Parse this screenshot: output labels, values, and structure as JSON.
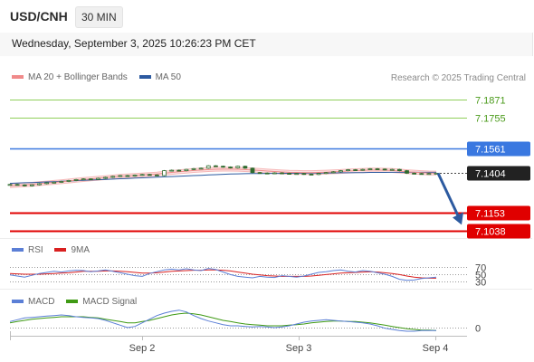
{
  "header": {
    "pair": "USD/CNH",
    "timeframe": "30 MIN",
    "datetime": "Wednesday, September 3, 2025 10:26:23 PM CET"
  },
  "legend": {
    "ma20_label": "MA 20 + Bollinger Bands",
    "ma50_label": "MA 50",
    "credit": "Research © 2025 Trading Central"
  },
  "colors": {
    "ma20": "#f08a8a",
    "ma50": "#2c5aa0",
    "bollinger_fill": "#fbe3e3",
    "resistance": "#8fcf5a",
    "pivot": "#3a78e0",
    "support": "#e00000",
    "candle": "#2e6b2e",
    "arrow": "#2c5aa0",
    "rsi": "#5b7fd6",
    "rsi_ma": "#d92020",
    "macd": "#5b7fd6",
    "macd_signal": "#3f9a14"
  },
  "chart_data": [
    {
      "type": "line",
      "panel": "price",
      "x_labels": [
        "Sep 2",
        "Sep 3",
        "Sep 4"
      ],
      "y_range": [
        7.1,
        7.195
      ],
      "levels": [
        {
          "label": "7.1871",
          "value": 7.1871,
          "kind": "resistance"
        },
        {
          "label": "7.1755",
          "value": 7.1755,
          "kind": "resistance"
        },
        {
          "label": "7.1561",
          "value": 7.1561,
          "kind": "pivot"
        },
        {
          "label": "7.1404",
          "value": 7.1404,
          "kind": "last"
        },
        {
          "label": "7.1153",
          "value": 7.1153,
          "kind": "support"
        },
        {
          "label": "7.1038",
          "value": 7.1038,
          "kind": "support"
        }
      ],
      "close": [
        7.1333,
        7.133,
        7.1324,
        7.1331,
        7.1338,
        7.1344,
        7.1347,
        7.1352,
        7.1358,
        7.1364,
        7.1368,
        7.1365,
        7.1372,
        7.1378,
        7.1384,
        7.1389,
        7.1386,
        7.1392,
        7.1396,
        7.1393,
        7.1389,
        7.142,
        7.1423,
        7.142,
        7.1428,
        7.1433,
        7.1436,
        7.1451,
        7.1448,
        7.1443,
        7.1438,
        7.1448,
        7.1436,
        7.1408,
        7.1405,
        7.1402,
        7.1406,
        7.1403,
        7.14,
        7.1402,
        7.1398,
        7.1396,
        7.1403,
        7.1408,
        7.1413,
        7.142,
        7.1426,
        7.1424,
        7.1428,
        7.1432,
        7.143,
        7.1426,
        7.1428,
        7.142,
        7.1404,
        7.1402,
        7.14,
        7.1402,
        7.1404
      ],
      "ma20": [
        7.1325,
        7.1328,
        7.1331,
        7.1334,
        7.1338,
        7.1342,
        7.1346,
        7.135,
        7.1355,
        7.136,
        7.1364,
        7.1368,
        7.1372,
        7.1376,
        7.138,
        7.1384,
        7.1387,
        7.139,
        7.1393,
        7.1396,
        7.1399,
        7.1404,
        7.1409,
        7.1413,
        7.1417,
        7.1421,
        7.1424,
        7.1427,
        7.1429,
        7.143,
        7.143,
        7.1429,
        7.1427,
        7.1424,
        7.1421,
        7.1418,
        7.1415,
        7.1412,
        7.141,
        7.1409,
        7.1408,
        7.1408,
        7.1409,
        7.1411,
        7.1413,
        7.1415,
        7.1418,
        7.142,
        7.1422,
        7.1424,
        7.1424,
        7.1423,
        7.1421,
        7.1418,
        7.1414,
        7.1411,
        7.1408,
        7.1406,
        7.1405
      ],
      "ma50": [
        7.134,
        7.1342,
        7.1344,
        7.1345,
        7.1347,
        7.1349,
        7.1351,
        7.1353,
        7.1355,
        7.1357,
        7.1359,
        7.1361,
        7.1363,
        7.1365,
        7.1367,
        7.1369,
        7.1371,
        7.1373,
        7.1375,
        7.1377,
        7.1379,
        7.1381,
        7.1383,
        7.1385,
        7.1387,
        7.1389,
        7.1391,
        7.1393,
        7.1395,
        7.1397,
        7.1399,
        7.14,
        7.1401,
        7.1402,
        7.1402,
        7.1403,
        7.1403,
        7.1403,
        7.1404,
        7.1404,
        7.1404,
        7.1405,
        7.1405,
        7.1406,
        7.1406,
        7.1407,
        7.1407,
        7.1408,
        7.1408,
        7.1409,
        7.1409,
        7.1409,
        7.141,
        7.141,
        7.141,
        7.141,
        7.141,
        7.141,
        7.141
      ],
      "bollinger_width": 0.0012,
      "projection": {
        "from": 7.1404,
        "to": 7.1078
      }
    },
    {
      "type": "line",
      "panel": "rsi",
      "legend": [
        "RSI",
        "9MA"
      ],
      "y_ticks": [
        {
          "label": "70",
          "value": 70
        },
        {
          "label": "50",
          "value": 50
        },
        {
          "label": "30",
          "value": 30
        }
      ],
      "y_range": [
        20,
        80
      ],
      "rsi": [
        48,
        45,
        42,
        47,
        52,
        55,
        58,
        56,
        59,
        61,
        60,
        57,
        59,
        62,
        58,
        54,
        50,
        46,
        44,
        52,
        57,
        62,
        64,
        62,
        65,
        62,
        60,
        66,
        63,
        56,
        49,
        44,
        42,
        40,
        44,
        42,
        41,
        46,
        44,
        42,
        45,
        50,
        55,
        57,
        60,
        62,
        58,
        56,
        60,
        58,
        54,
        50,
        44,
        36,
        33,
        34,
        38,
        40,
        42
      ],
      "rsi_ma": [
        52,
        51,
        50,
        50,
        50,
        51,
        52,
        53,
        54,
        56,
        58,
        58,
        58,
        59,
        59,
        58,
        57,
        55,
        53,
        53,
        54,
        56,
        58,
        59,
        60,
        61,
        61,
        62,
        62,
        61,
        59,
        56,
        53,
        50,
        48,
        46,
        45,
        44,
        44,
        44,
        44,
        45,
        47,
        49,
        51,
        53,
        54,
        55,
        56,
        57,
        56,
        54,
        52,
        49,
        45,
        42,
        40,
        39,
        39
      ]
    },
    {
      "type": "line",
      "panel": "macd",
      "legend": [
        "MACD",
        "MACD Signal"
      ],
      "y_ticks": [
        {
          "label": "0",
          "value": 0
        }
      ],
      "y_range": [
        -0.0012,
        0.0036
      ],
      "macd": [
        0.001,
        0.0013,
        0.0016,
        0.0017,
        0.0018,
        0.0019,
        0.002,
        0.0021,
        0.002,
        0.0018,
        0.0017,
        0.0016,
        0.0015,
        0.0012,
        0.0008,
        0.0004,
        0.0,
        0.0002,
        0.0008,
        0.0014,
        0.002,
        0.0024,
        0.0027,
        0.0029,
        0.0026,
        0.002,
        0.0015,
        0.0011,
        0.0008,
        0.0005,
        0.0003,
        0.0003,
        0.0002,
        0.0001,
        0.0002,
        0.0001,
        0.0,
        0.0001,
        0.0003,
        0.0006,
        0.0009,
        0.0011,
        0.0012,
        0.0013,
        0.0012,
        0.0011,
        0.001,
        0.0009,
        0.0008,
        0.0006,
        0.0003,
        -0.0001,
        -0.0003,
        -0.0005,
        -0.0006,
        -0.0006,
        -0.0005,
        -0.0005,
        -0.0005
      ],
      "signal": [
        0.0008,
        0.001,
        0.0012,
        0.0014,
        0.0015,
        0.0016,
        0.0017,
        0.0018,
        0.0018,
        0.0018,
        0.0018,
        0.0017,
        0.0016,
        0.0014,
        0.0012,
        0.001,
        0.0008,
        0.0008,
        0.001,
        0.0012,
        0.0015,
        0.0018,
        0.0021,
        0.0023,
        0.0024,
        0.0023,
        0.0021,
        0.0018,
        0.0015,
        0.0012,
        0.001,
        0.0008,
        0.0006,
        0.0005,
        0.0004,
        0.0003,
        0.0003,
        0.0003,
        0.0004,
        0.0005,
        0.0006,
        0.0008,
        0.0009,
        0.001,
        0.0011,
        0.0011,
        0.001,
        0.001,
        0.0009,
        0.0008,
        0.0006,
        0.0004,
        0.0002,
        0.0,
        -0.0002,
        -0.0003,
        -0.0004,
        -0.0004,
        -0.0005
      ]
    }
  ]
}
